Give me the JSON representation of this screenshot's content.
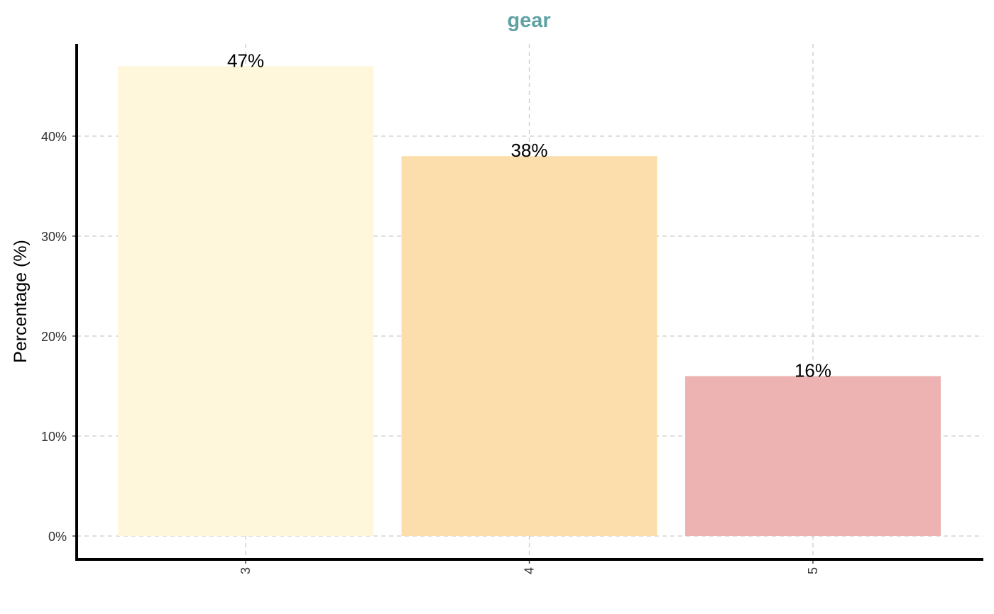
{
  "chart_data": {
    "type": "bar",
    "title": "gear",
    "xlabel": "",
    "ylabel": "Percentage (%)",
    "categories": [
      "3",
      "4",
      "5"
    ],
    "values": [
      47,
      38,
      16
    ],
    "data_labels": [
      "47%",
      "38%",
      "16%"
    ],
    "bar_colors": [
      "#FEF7DC",
      "#FBDEAB",
      "#EDB3B3"
    ],
    "ylim": [
      0,
      49.3
    ],
    "y_ticks": [
      0,
      10,
      20,
      30,
      40
    ],
    "y_tick_labels": [
      "0%",
      "10%",
      "20%",
      "30%",
      "40%"
    ],
    "grid": true,
    "grid_style": "dashed",
    "legend": "none",
    "title_color": "#5FA2A5",
    "grid_color": "#CCCCCC",
    "axis_color": "#000000"
  }
}
